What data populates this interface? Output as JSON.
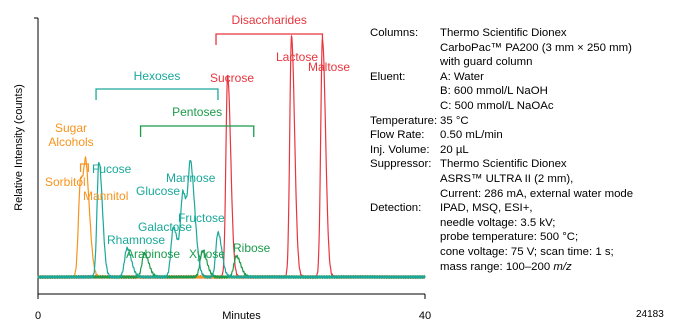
{
  "chart_data": {
    "type": "line",
    "title": "",
    "xlabel": "Minutes",
    "ylabel": "Relative Intensity (counts)",
    "x_ticks": [
      "0",
      "40"
    ],
    "xlim": [
      0,
      40
    ],
    "grid": false,
    "colors": {
      "sugar_alcohols": "#f7941d",
      "hexoses": "#1aa89a",
      "pentoses": "#1a9b4a",
      "disaccharides": "#e8353e"
    },
    "series": [
      {
        "group": "sugar_alcohols",
        "peaks": [
          {
            "name": "Sorbitol",
            "rt": 4.4,
            "height": 0.37,
            "width": 0.22
          },
          {
            "name": "Mannitol",
            "rt": 5.0,
            "height": 0.32,
            "width": 0.22
          }
        ]
      },
      {
        "group": "hexoses",
        "peaks": [
          {
            "name": "Fucose",
            "rt": 6.3,
            "height": 0.44,
            "width": 0.2
          },
          {
            "name": "Rhamnose",
            "rt": 9.2,
            "height": 0.11,
            "width": 0.25
          },
          {
            "name": "Galactose",
            "rt": 14.0,
            "height": 0.19,
            "width": 0.25
          },
          {
            "name": "Glucose",
            "rt": 15.0,
            "height": 0.31,
            "width": 0.25
          },
          {
            "name": "Mannose",
            "rt": 15.8,
            "height": 0.38,
            "width": 0.25
          },
          {
            "name": "Fructose",
            "rt": 18.6,
            "height": 0.17,
            "width": 0.22
          }
        ]
      },
      {
        "group": "pentoses",
        "peaks": [
          {
            "name": "Arabinose",
            "rt": 11.0,
            "height": 0.09,
            "width": 0.25
          },
          {
            "name": "Xylose",
            "rt": 17.0,
            "height": 0.1,
            "width": 0.25
          },
          {
            "name": "Ribose",
            "rt": 20.5,
            "height": 0.08,
            "width": 0.25
          }
        ]
      },
      {
        "group": "disaccharides",
        "peaks": [
          {
            "name": "Sucrose",
            "rt": 19.6,
            "height": 0.77,
            "width": 0.18
          },
          {
            "name": "Lactose",
            "rt": 26.2,
            "height": 0.92,
            "width": 0.18
          },
          {
            "name": "Maltose",
            "rt": 29.4,
            "height": 0.91,
            "width": 0.18
          }
        ]
      }
    ],
    "groups": [
      {
        "key": "sugar_alcohols",
        "label_lines": [
          "Sugar",
          "Alcohols"
        ],
        "span": [
          4.4,
          5.2
        ]
      },
      {
        "key": "hexoses",
        "label_lines": [
          "Hexoses"
        ],
        "span": [
          6.0,
          18.6
        ]
      },
      {
        "key": "pentoses",
        "label_lines": [
          "Pentoses"
        ],
        "span": [
          10.6,
          22.3
        ]
      },
      {
        "key": "disaccharides",
        "label_lines": [
          "Disaccharides"
        ],
        "span": [
          18.4,
          29.4
        ]
      }
    ]
  },
  "conditions": [
    {
      "label": "Columns:",
      "lines": [
        "Thermo Scientific Dionex",
        "CarboPac™ PA200 (3 mm × 250 mm)",
        "with guard column"
      ]
    },
    {
      "label": "Eluent:",
      "lines": [
        "A: Water",
        "B: 600 mmol/L NaOH",
        "C: 500 mmol/L NaOAc"
      ]
    },
    {
      "label": "Temperature:",
      "lines": [
        "35 °C"
      ]
    },
    {
      "label": "Flow Rate:",
      "lines": [
        "0.50 mL/min"
      ]
    },
    {
      "label": "Inj. Volume:",
      "lines": [
        "20 µL"
      ]
    },
    {
      "label": "Suppressor:",
      "lines": [
        "Thermo Scientific Dionex",
        "ASRS™ ULTRA II (2 mm),",
        "Current: 286 mA, external water mode"
      ]
    },
    {
      "label": "Detection:",
      "lines": [
        "IPAD, MSQ, ESI+,",
        "needle voltage: 3.5 kV;",
        "probe temperature: 500 °C;",
        "cone voltage: 75 V; scan time: 1 s;",
        "mass range: 100–200 m/z"
      ]
    }
  ],
  "figure_id": "24183"
}
